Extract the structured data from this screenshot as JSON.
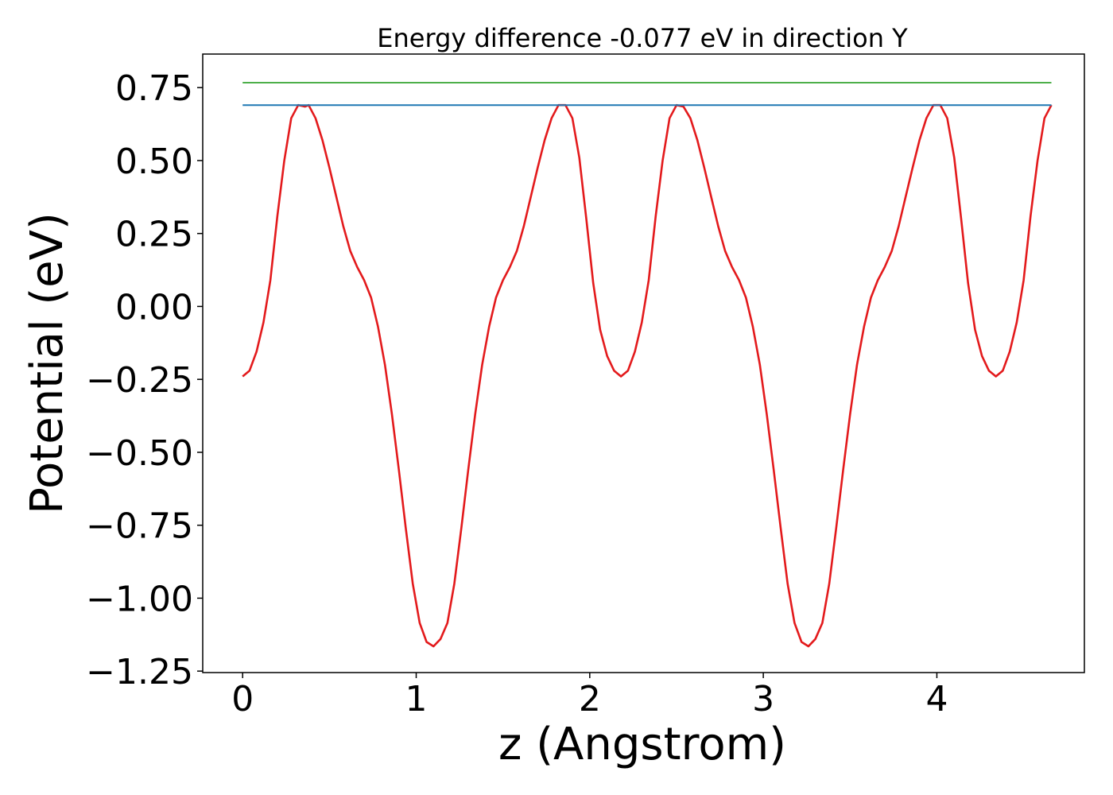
{
  "chart_data": {
    "type": "line",
    "title": "Energy difference -0.077 eV in direction Y",
    "xlabel": "z (Angstrom)",
    "ylabel": "Potential (eV)",
    "xlim": [
      -0.23,
      4.85
    ],
    "ylim": [
      -1.255,
      0.865
    ],
    "xticks": [
      0,
      1,
      2,
      3,
      4
    ],
    "xtick_labels": [
      "0",
      "1",
      "2",
      "3",
      "4"
    ],
    "yticks": [
      0.75,
      0.5,
      0.25,
      0.0,
      -0.25,
      -0.5,
      -0.75,
      -1.0,
      -1.25
    ],
    "ytick_labels": [
      "0.75",
      "0.50",
      "0.25",
      "0.00",
      "−0.25",
      "−0.50",
      "−0.75",
      "−1.00",
      "−1.25"
    ],
    "grid": false,
    "legend": "none",
    "series": [
      {
        "color": "#e31a1c",
        "x": [
          0.0,
          0.04,
          0.08,
          0.12,
          0.16,
          0.2,
          0.24,
          0.28,
          0.32,
          0.36,
          0.38,
          0.42,
          0.46,
          0.5,
          0.54,
          0.58,
          0.62,
          0.66,
          0.7,
          0.74,
          0.78,
          0.82,
          0.86,
          0.9,
          0.94,
          0.98,
          1.02,
          1.06,
          1.1,
          1.14,
          1.18,
          1.22,
          1.26,
          1.3,
          1.34,
          1.38,
          1.42,
          1.46,
          1.5,
          1.54,
          1.58,
          1.62,
          1.66,
          1.7,
          1.74,
          1.78,
          1.82,
          1.86,
          1.9,
          1.94,
          1.98,
          2.02,
          2.06,
          2.1,
          2.14,
          2.18,
          2.22,
          2.26,
          2.3,
          2.34,
          2.38,
          2.42,
          2.46,
          2.5,
          2.54,
          2.58,
          2.62,
          2.66,
          2.7,
          2.74,
          2.78,
          2.82,
          2.86,
          2.9,
          2.94,
          2.98,
          3.02,
          3.06,
          3.1,
          3.14,
          3.18,
          3.22,
          3.26,
          3.3,
          3.34,
          3.38,
          3.42,
          3.46,
          3.5,
          3.54,
          3.58,
          3.62,
          3.66,
          3.7,
          3.74,
          3.78,
          3.82,
          3.86,
          3.9,
          3.94,
          3.98,
          4.02,
          4.06,
          4.1,
          4.14,
          4.18,
          4.22,
          4.26,
          4.3,
          4.34,
          4.38,
          4.42,
          4.46,
          4.5,
          4.54,
          4.58,
          4.62,
          4.66
        ],
        "y": [
          -0.24,
          -0.22,
          -0.155,
          -0.055,
          0.09,
          0.31,
          0.5,
          0.645,
          0.69,
          0.685,
          0.69,
          0.645,
          0.57,
          0.475,
          0.375,
          0.275,
          0.19,
          0.135,
          0.09,
          0.03,
          -0.07,
          -0.2,
          -0.37,
          -0.56,
          -0.76,
          -0.95,
          -1.085,
          -1.15,
          -1.165,
          -1.14,
          -1.085,
          -0.95,
          -0.76,
          -0.56,
          -0.37,
          -0.2,
          -0.07,
          0.03,
          0.09,
          0.135,
          0.19,
          0.275,
          0.375,
          0.475,
          0.57,
          0.645,
          0.69,
          0.69,
          0.645,
          0.51,
          0.3,
          0.08,
          -0.08,
          -0.17,
          -0.22,
          -0.24,
          -0.22,
          -0.155,
          -0.055,
          0.09,
          0.31,
          0.5,
          0.645,
          0.69,
          0.685,
          0.645,
          0.57,
          0.475,
          0.375,
          0.275,
          0.19,
          0.135,
          0.09,
          0.03,
          -0.07,
          -0.2,
          -0.37,
          -0.56,
          -0.76,
          -0.95,
          -1.085,
          -1.15,
          -1.165,
          -1.14,
          -1.085,
          -0.95,
          -0.76,
          -0.56,
          -0.37,
          -0.2,
          -0.07,
          0.03,
          0.09,
          0.135,
          0.19,
          0.275,
          0.375,
          0.475,
          0.57,
          0.645,
          0.69,
          0.69,
          0.645,
          0.51,
          0.3,
          0.08,
          -0.08,
          -0.17,
          -0.22,
          -0.24,
          -0.22,
          -0.155,
          -0.055,
          0.09,
          0.31,
          0.5,
          0.645,
          0.69
        ]
      },
      {
        "color": "#1f78b4",
        "x": [
          0.0,
          4.66
        ],
        "y": [
          0.69,
          0.69
        ]
      },
      {
        "color": "#4daf4a",
        "x": [
          0.0,
          4.66
        ],
        "y": [
          0.767,
          0.767
        ]
      }
    ]
  }
}
